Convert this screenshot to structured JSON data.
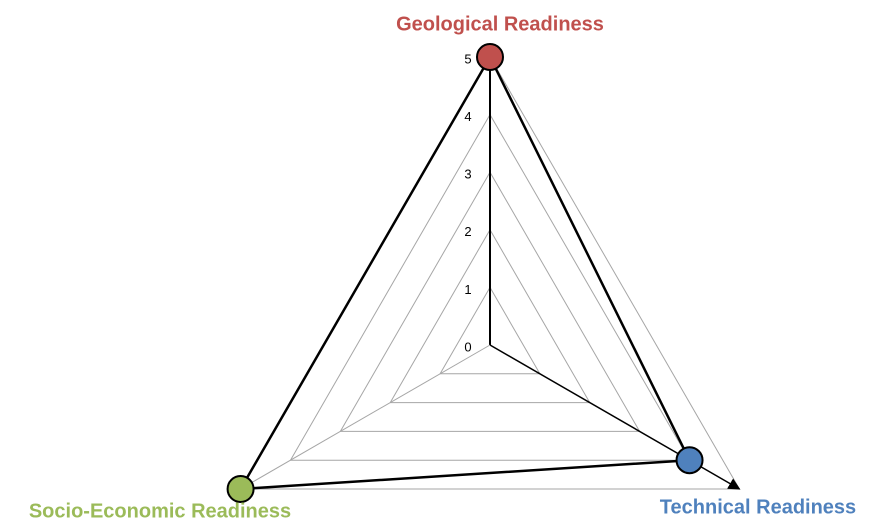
{
  "chart_data": {
    "type": "radar",
    "categories": [
      "Geological Readiness",
      "Technical Readiness",
      "Socio-Economic Readiness"
    ],
    "category_colors": [
      "#c0504d",
      "#4f81bd",
      "#9bbb59"
    ],
    "values": [
      5,
      4,
      5
    ],
    "color": "#000000",
    "point_colors": [
      "#c0504d",
      "#4f81bd",
      "#9bbb59"
    ],
    "ylim": [
      0,
      5
    ],
    "yticks": [
      0,
      1,
      2,
      3,
      4,
      5
    ],
    "grid": true
  }
}
